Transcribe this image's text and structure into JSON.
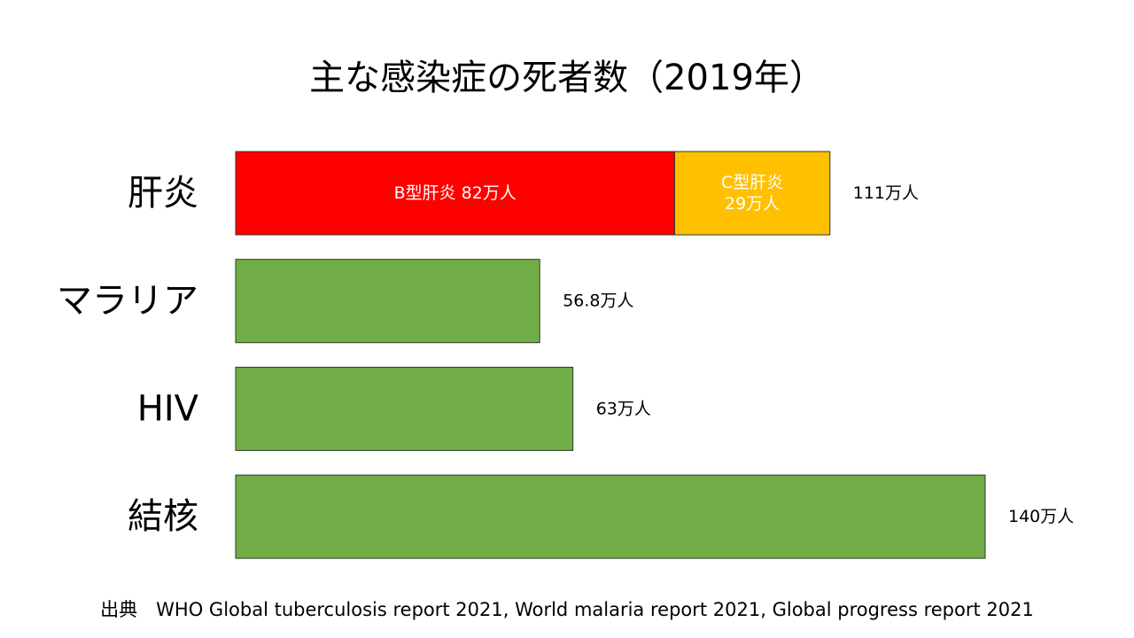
{
  "chart_data": {
    "type": "bar",
    "orientation": "horizontal",
    "stacked": true,
    "title": "主な感染症の死者数（2019年）",
    "unit": "万人",
    "categories": [
      "肝炎",
      "マラリア",
      "HIV",
      "結核"
    ],
    "series": [
      {
        "name": "B型肝炎",
        "values": [
          82,
          0,
          0,
          0
        ],
        "color": "#ff0000",
        "label_color": "#ffffff"
      },
      {
        "name": "C型肝炎",
        "values": [
          29,
          0,
          0,
          0
        ],
        "color": "#ffc000",
        "label_color": "#ffffff"
      },
      {
        "values": [
          0,
          56.8,
          63,
          140
        ],
        "color": "#70ad47"
      }
    ],
    "segment_labels": [
      {
        "category": 0,
        "series": 0,
        "text": "B型肝炎 82万人"
      },
      {
        "category": 0,
        "series": 1,
        "text": "C型肝炎\n29万人"
      }
    ],
    "totals": [
      111,
      56.8,
      63,
      140
    ],
    "total_labels": [
      "111万人",
      "56.8万人",
      "63万人",
      "140万人"
    ],
    "xlim": [
      0,
      140
    ],
    "grid": false,
    "legend": "none"
  },
  "source": "出典　WHO Global tuberculosis report 2021, World malaria report 2021, Global progress report 2021"
}
